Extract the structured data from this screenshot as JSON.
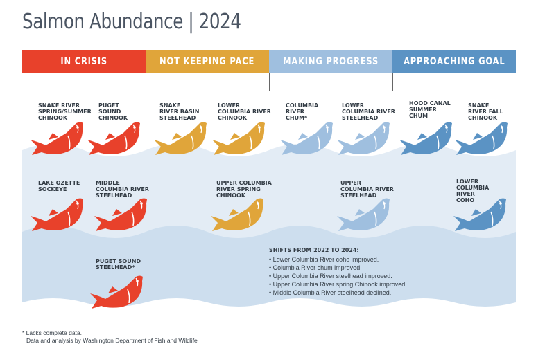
{
  "title": "Salmon Abundance | 2024",
  "colors": {
    "in_crisis": "#e8412b",
    "not_keeping_pace": "#e0a53a",
    "making_progress": "#9fbfdf",
    "approaching_goal": "#5b93c4",
    "water_light": "#dde8f2",
    "water_deep": "#c9dbeb"
  },
  "categories": [
    {
      "key": "in_crisis",
      "label": "IN CRISIS"
    },
    {
      "key": "not_keeping_pace",
      "label": "NOT KEEPING PACE"
    },
    {
      "key": "making_progress",
      "label": "MAKING PROGRESS"
    },
    {
      "key": "approaching_goal",
      "label": "APPROACHING GOAL"
    }
  ],
  "stocks": [
    {
      "name": "SNAKE RIVER\nSPRING/SUMMER\nCHINOOK",
      "category": "in_crisis"
    },
    {
      "name": "PUGET\nSOUND\nCHINOOK",
      "category": "in_crisis"
    },
    {
      "name": "SNAKE\nRIVER BASIN\nSTEELHEAD",
      "category": "not_keeping_pace"
    },
    {
      "name": "LOWER\nCOLUMBIA RIVER\nCHINOOK",
      "category": "not_keeping_pace"
    },
    {
      "name": "COLUMBIA\nRIVER\nCHUM*",
      "category": "making_progress"
    },
    {
      "name": "LOWER\nCOLUMBIA RIVER\nSTEELHEAD",
      "category": "making_progress"
    },
    {
      "name": "HOOD CANAL\nSUMMER\nCHUM",
      "category": "approaching_goal"
    },
    {
      "name": "SNAKE\nRIVER FALL\nCHINOOK",
      "category": "approaching_goal"
    },
    {
      "name": "LAKE OZETTE\nSOCKEYE",
      "category": "in_crisis"
    },
    {
      "name": "MIDDLE\nCOLUMBIA RIVER\nSTEELHEAD",
      "category": "in_crisis"
    },
    {
      "name": "UPPER COLUMBIA\nRIVER SPRING\nCHINOOK",
      "category": "not_keeping_pace"
    },
    {
      "name": "UPPER\nCOLUMBIA RIVER\nSTEELHEAD",
      "category": "making_progress"
    },
    {
      "name": "LOWER\nCOLUMBIA\nRIVER\nCOHO",
      "category": "approaching_goal"
    },
    {
      "name": "PUGET SOUND\nSTEELHEAD*",
      "category": "in_crisis"
    }
  ],
  "shifts": {
    "heading": "SHIFTS FROM 2022 TO 2024:",
    "items": [
      "• Lower Columbia River coho improved.",
      "• Columbia River chum improved.",
      "• Upper Columbia River steelhead improved.",
      "• Upper Columbia River spring Chinook improved.",
      "• Middle Columbia River steelhead declined."
    ]
  },
  "footnote": "* Lacks complete data.",
  "credit": "Data and analysis by Washington Department of Fish and Wildlife"
}
